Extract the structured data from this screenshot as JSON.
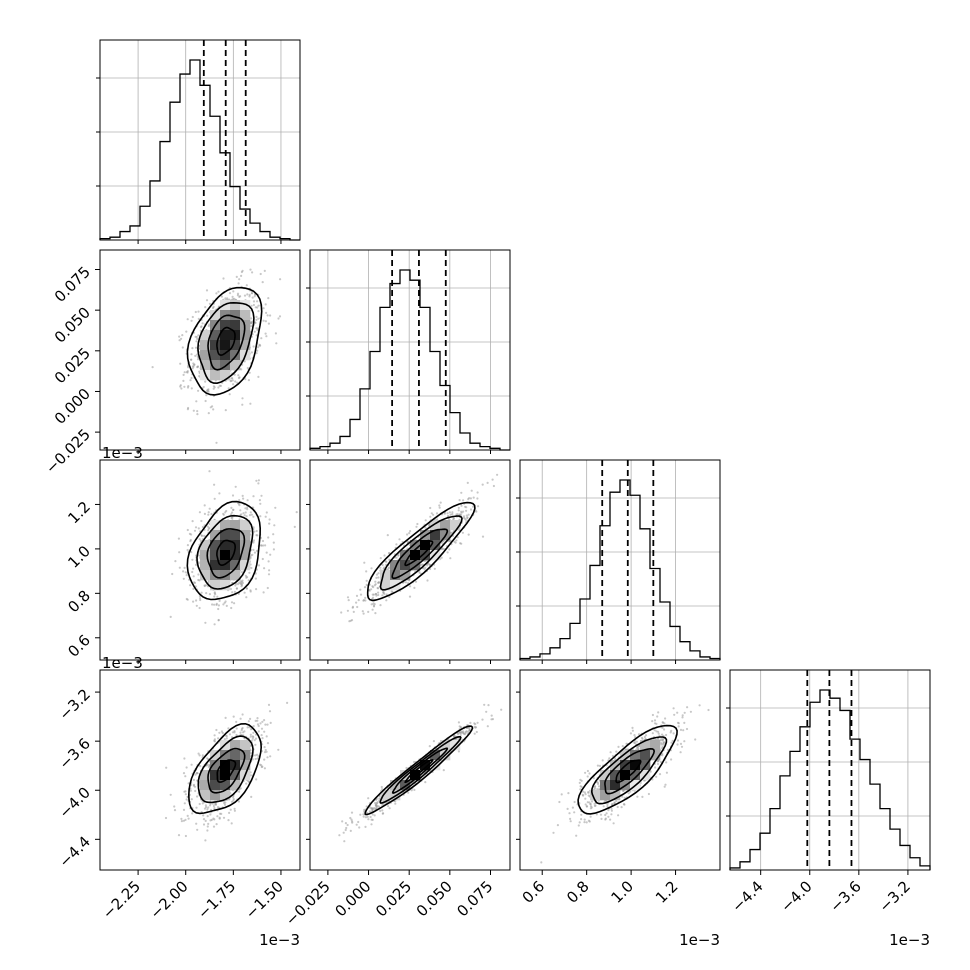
{
  "chart_data": {
    "type": "corner",
    "title": "",
    "parameters": [
      {
        "range": [
          -2.45,
          -1.4
        ],
        "ticks": [
          -2.25,
          -2.0,
          -1.75,
          -1.5
        ],
        "tick_labels": [
          "−2.25",
          "−2.00",
          "−1.75",
          "−1.50"
        ],
        "offset_text": "1e−3",
        "quantiles": [
          -1.905,
          -1.79,
          -1.685
        ],
        "center": -1.79,
        "sd": 0.095
      },
      {
        "range": [
          -0.036,
          0.087
        ],
        "ticks": [
          -0.025,
          0.0,
          0.025,
          0.05,
          0.075
        ],
        "tick_labels": [
          "−0.025",
          "0.000",
          "0.025",
          "0.050",
          "0.075"
        ],
        "offset_text": "",
        "quantiles": [
          0.0145,
          0.031,
          0.0475
        ],
        "center": 0.031,
        "sd": 0.0165
      },
      {
        "range": [
          0.5,
          1.4
        ],
        "ticks": [
          0.6,
          0.8,
          1.0,
          1.2
        ],
        "tick_labels": [
          "0.6",
          "0.8",
          "1.0",
          "1.2"
        ],
        "offset_text": "1e−3",
        "quantiles": [
          0.87,
          0.985,
          1.1
        ],
        "center": 0.985,
        "sd": 0.11
      },
      {
        "range": [
          -4.65,
          -3.02
        ],
        "ticks": [
          -4.4,
          -4.0,
          -3.6,
          -3.2
        ],
        "tick_labels": [
          "−4.4",
          "−4.0",
          "−3.6",
          "−3.2"
        ],
        "offset_text": "1e−3",
        "quantiles": [
          -4.02,
          -3.84,
          -3.66
        ],
        "center": -3.84,
        "sd": 0.18
      }
    ],
    "histograms": [
      {
        "param": 0,
        "bins": 20,
        "counts": [
          1,
          2,
          6,
          10,
          24,
          42,
          70,
          98,
          118,
          128,
          110,
          88,
          62,
          38,
          22,
          12,
          6,
          2,
          1,
          0
        ]
      },
      {
        "param": 1,
        "bins": 20,
        "counts": [
          1,
          2,
          4,
          8,
          18,
          36,
          58,
          84,
          98,
          106,
          100,
          84,
          58,
          38,
          22,
          10,
          4,
          2,
          1,
          0
        ]
      },
      {
        "param": 2,
        "bins": 20,
        "counts": [
          1,
          2,
          4,
          8,
          14,
          24,
          40,
          62,
          88,
          110,
          118,
          108,
          86,
          60,
          38,
          22,
          12,
          6,
          2,
          1
        ]
      },
      {
        "param": 3,
        "bins": 20,
        "counts": [
          1,
          4,
          10,
          18,
          30,
          46,
          58,
          70,
          82,
          88,
          84,
          78,
          64,
          54,
          42,
          30,
          20,
          12,
          6,
          2
        ]
      }
    ],
    "pair_correlations": [
      {
        "row": 1,
        "col": 0,
        "rho": 0.35
      },
      {
        "row": 2,
        "col": 0,
        "rho": 0.3
      },
      {
        "row": 2,
        "col": 1,
        "rho": 0.88
      },
      {
        "row": 3,
        "col": 0,
        "rho": 0.55
      },
      {
        "row": 3,
        "col": 1,
        "rho": 0.97
      },
      {
        "row": 3,
        "col": 2,
        "rho": 0.8
      }
    ],
    "contour_levels_sigma": [
      0.5,
      1.0,
      1.5,
      2.0
    ],
    "grid": true,
    "colors": {
      "hist": "#000000",
      "quantile": "#000000",
      "grid": "#b0b0b0",
      "scatter": "#9a9a9a",
      "contour": "#000000"
    }
  }
}
